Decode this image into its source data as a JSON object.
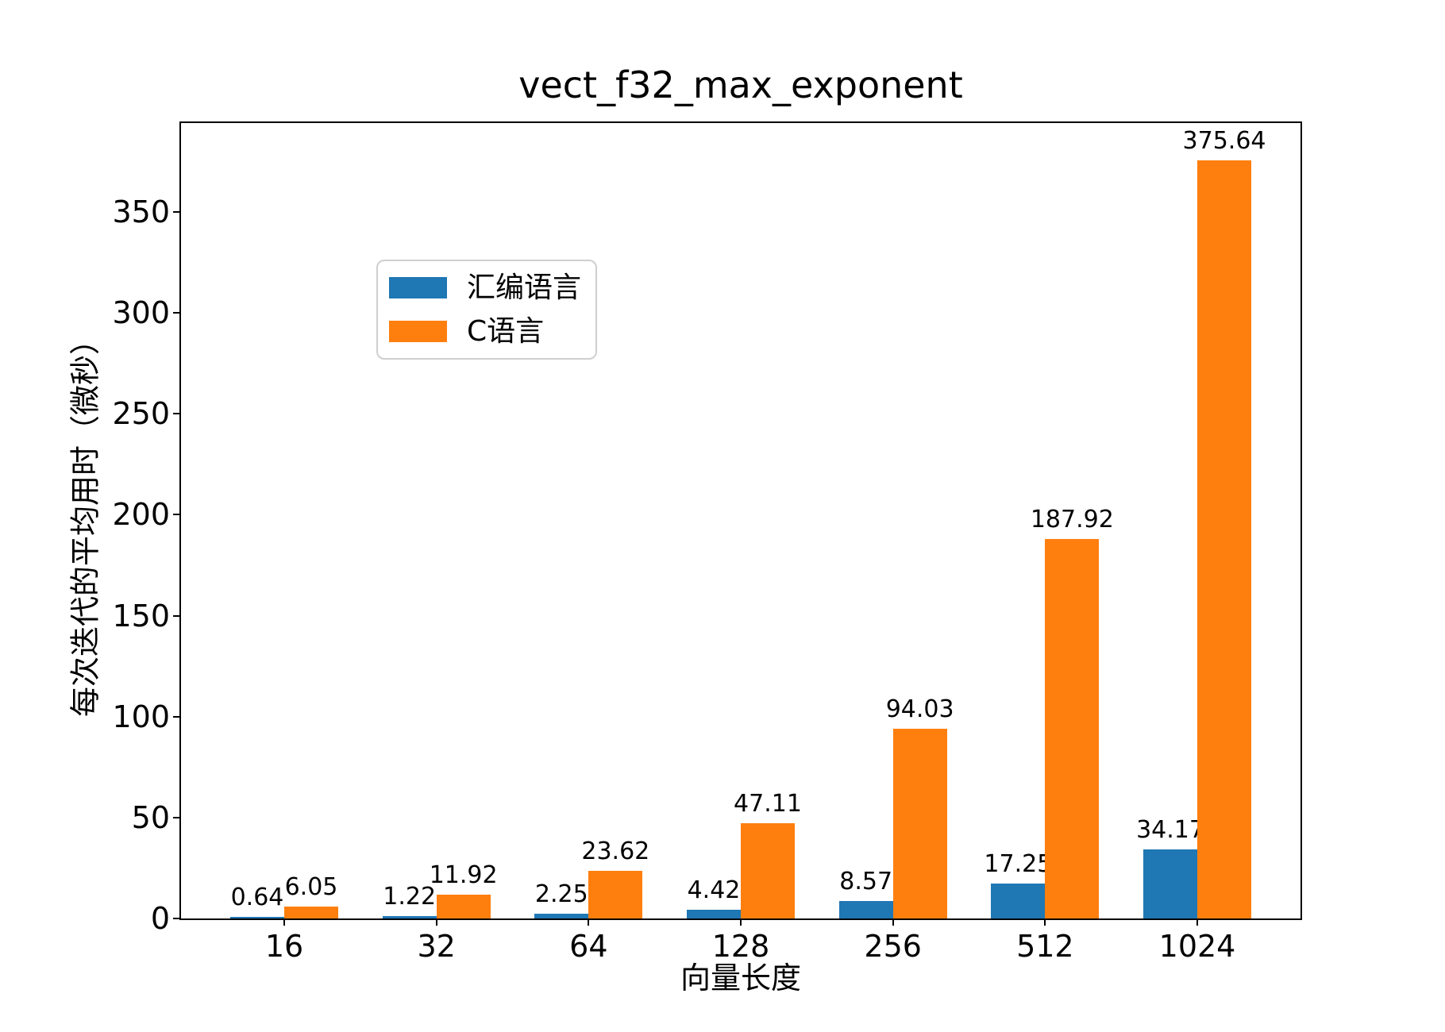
{
  "figure": {
    "title": "vect_f32_max_exponent"
  },
  "chart_data": {
    "type": "bar",
    "title": "vect_f32_max_exponent",
    "xlabel": "向量长度",
    "ylabel": "每次迭代的平均用时（微秒）",
    "categories": [
      "16",
      "32",
      "64",
      "128",
      "256",
      "512",
      "1024"
    ],
    "series": [
      {
        "name": "汇编语言",
        "color": "#1f77b4",
        "values": [
          0.64,
          1.22,
          2.25,
          4.42,
          8.57,
          17.25,
          34.17
        ],
        "labels": [
          "0.64",
          "1.22",
          "2.25",
          "4.42",
          "8.57",
          "17.25",
          "34.17"
        ]
      },
      {
        "name": "C语言",
        "color": "#ff7f0e",
        "values": [
          6.05,
          11.92,
          23.62,
          47.11,
          94.03,
          187.92,
          375.64
        ],
        "labels": [
          "6.05",
          "11.92",
          "23.62",
          "47.11",
          "94.03",
          "187.92",
          "375.64"
        ]
      }
    ],
    "yticks": [
      0,
      50,
      100,
      150,
      200,
      250,
      300,
      350
    ],
    "ylim": [
      0,
      394
    ],
    "grid": false,
    "legend_position": "upper left",
    "bar_value_labels": true,
    "axis_color": "#000000",
    "background_color": "#ffffff"
  }
}
